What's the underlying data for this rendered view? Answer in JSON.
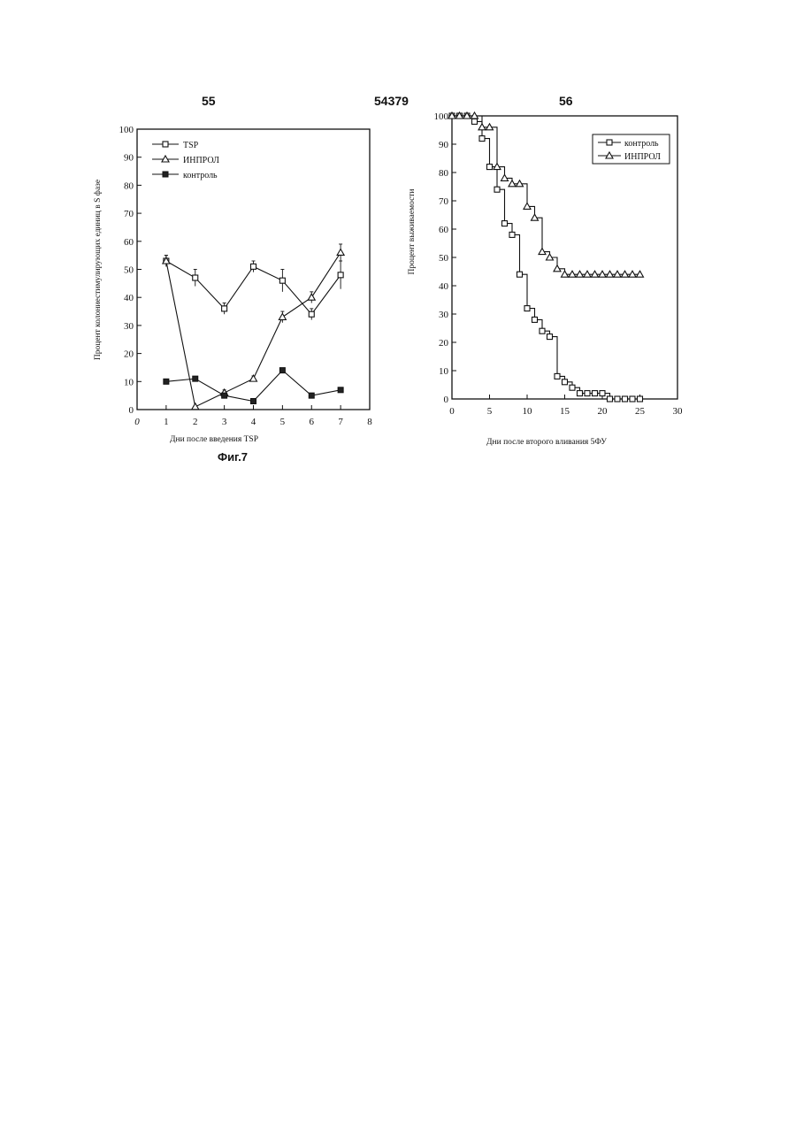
{
  "page": {
    "page_left": "55",
    "page_center": "54379",
    "page_right": "56"
  },
  "chart_data": [
    {
      "type": "line",
      "caption": "Фиг.7",
      "xlabel": "Дни после введения TSP",
      "ylabel": "Процент колониестимулирующих единиц в S фазе",
      "xlim": [
        0,
        8
      ],
      "ylim": [
        0,
        100
      ],
      "xticks": [
        "0",
        "1",
        "2",
        "3",
        "4",
        "5",
        "6",
        "7",
        "8"
      ],
      "yticks": [
        "0",
        "10",
        "20",
        "30",
        "40",
        "50",
        "60",
        "70",
        "80",
        "90",
        "100"
      ],
      "legend_position": "top-left",
      "grid": false,
      "series": [
        {
          "name": "TSP",
          "marker": "open-square",
          "x": [
            1,
            2,
            3,
            4,
            5,
            6,
            7
          ],
          "y": [
            53,
            47,
            36,
            51,
            46,
            34,
            48
          ],
          "err": [
            2,
            3,
            2,
            2,
            4,
            2,
            5
          ]
        },
        {
          "name": "ИНПРОЛ",
          "marker": "triangle",
          "x": [
            1,
            2,
            3,
            4,
            5,
            6,
            7
          ],
          "y": [
            53,
            1,
            6,
            11,
            33,
            40,
            56
          ],
          "err": [
            2,
            0,
            1,
            1,
            2,
            2,
            3
          ]
        },
        {
          "name": "контроль",
          "marker": "filled-square",
          "x": [
            1,
            2,
            3,
            4,
            5,
            6,
            7
          ],
          "y": [
            10,
            11,
            5,
            3,
            14,
            5,
            7
          ],
          "err": [
            0,
            0,
            0,
            0,
            0,
            0,
            0
          ]
        }
      ]
    },
    {
      "type": "line",
      "xlabel": "Дни после второго вливания 5ФУ",
      "ylabel": "Процент выживаемости",
      "xlim": [
        0,
        30
      ],
      "ylim": [
        0,
        100
      ],
      "xticks": [
        "0",
        "5",
        "10",
        "15",
        "20",
        "25",
        "30"
      ],
      "yticks": [
        "0",
        "10",
        "20",
        "30",
        "40",
        "50",
        "60",
        "70",
        "80",
        "90",
        "100"
      ],
      "legend_position": "top-right",
      "grid": false,
      "series": [
        {
          "name": "контроль",
          "marker": "open-square",
          "step": true,
          "x": [
            0,
            1,
            2,
            3,
            4,
            5,
            6,
            7,
            8,
            9,
            10,
            11,
            12,
            13,
            14,
            15,
            16,
            17,
            18,
            19,
            20,
            21,
            22,
            23,
            24,
            25
          ],
          "y": [
            100,
            100,
            100,
            98,
            92,
            82,
            74,
            62,
            58,
            44,
            32,
            28,
            24,
            22,
            8,
            6,
            4,
            2,
            2,
            2,
            2,
            0,
            0,
            0,
            0,
            0
          ]
        },
        {
          "name": "ИНПРОЛ",
          "marker": "triangle",
          "step": true,
          "x": [
            0,
            1,
            2,
            3,
            4,
            5,
            6,
            7,
            8,
            9,
            10,
            11,
            12,
            13,
            14,
            15,
            16,
            17,
            18,
            19,
            20,
            21,
            22,
            23,
            24,
            25
          ],
          "y": [
            100,
            100,
            100,
            100,
            96,
            96,
            82,
            78,
            76,
            76,
            68,
            64,
            52,
            50,
            46,
            44,
            44,
            44,
            44,
            44,
            44,
            44,
            44,
            44,
            44,
            44
          ]
        }
      ]
    }
  ]
}
